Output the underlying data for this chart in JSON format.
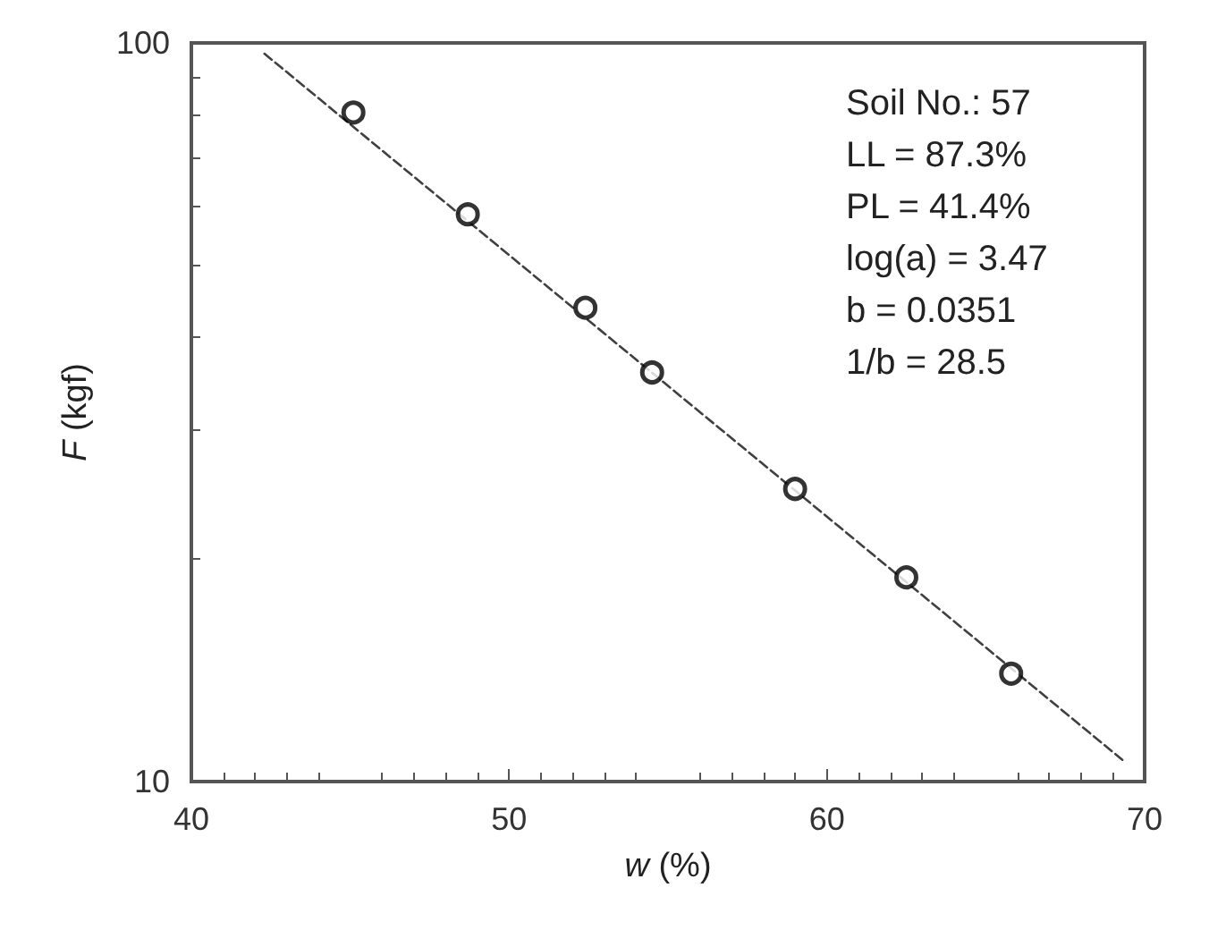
{
  "chart_data": {
    "type": "scatter",
    "xlabel": "w (%)",
    "ylabel": "F (kgf)",
    "xlim": [
      40,
      70
    ],
    "xticks": [
      40,
      50,
      60,
      70
    ],
    "ylim": [
      10,
      100
    ],
    "yticks": [
      10,
      100
    ],
    "log": "y",
    "grid": false,
    "series": [
      {
        "color": "#000000",
        "marker": "circle",
        "x": [
          45.1,
          48.7,
          52.4,
          54.5,
          59.0,
          62.5,
          65.8
        ],
        "values": [
          80.5,
          58.6,
          43.8,
          35.8,
          24.9,
          18.9,
          14.0
        ]
      },
      {
        "type": "line",
        "color": "#404040",
        "marker": "none",
        "line_style": "dashed",
        "x": [
          42.3,
          69.3
        ],
        "values": [
          96.7,
          10.7
        ]
      }
    ],
    "annotations": [
      "Soil No.: 57",
      "LL = 87.3%",
      "PL = 41.4%",
      "log(a) = 3.47",
      "b = 0.0351",
      "1/b = 28.5"
    ]
  }
}
